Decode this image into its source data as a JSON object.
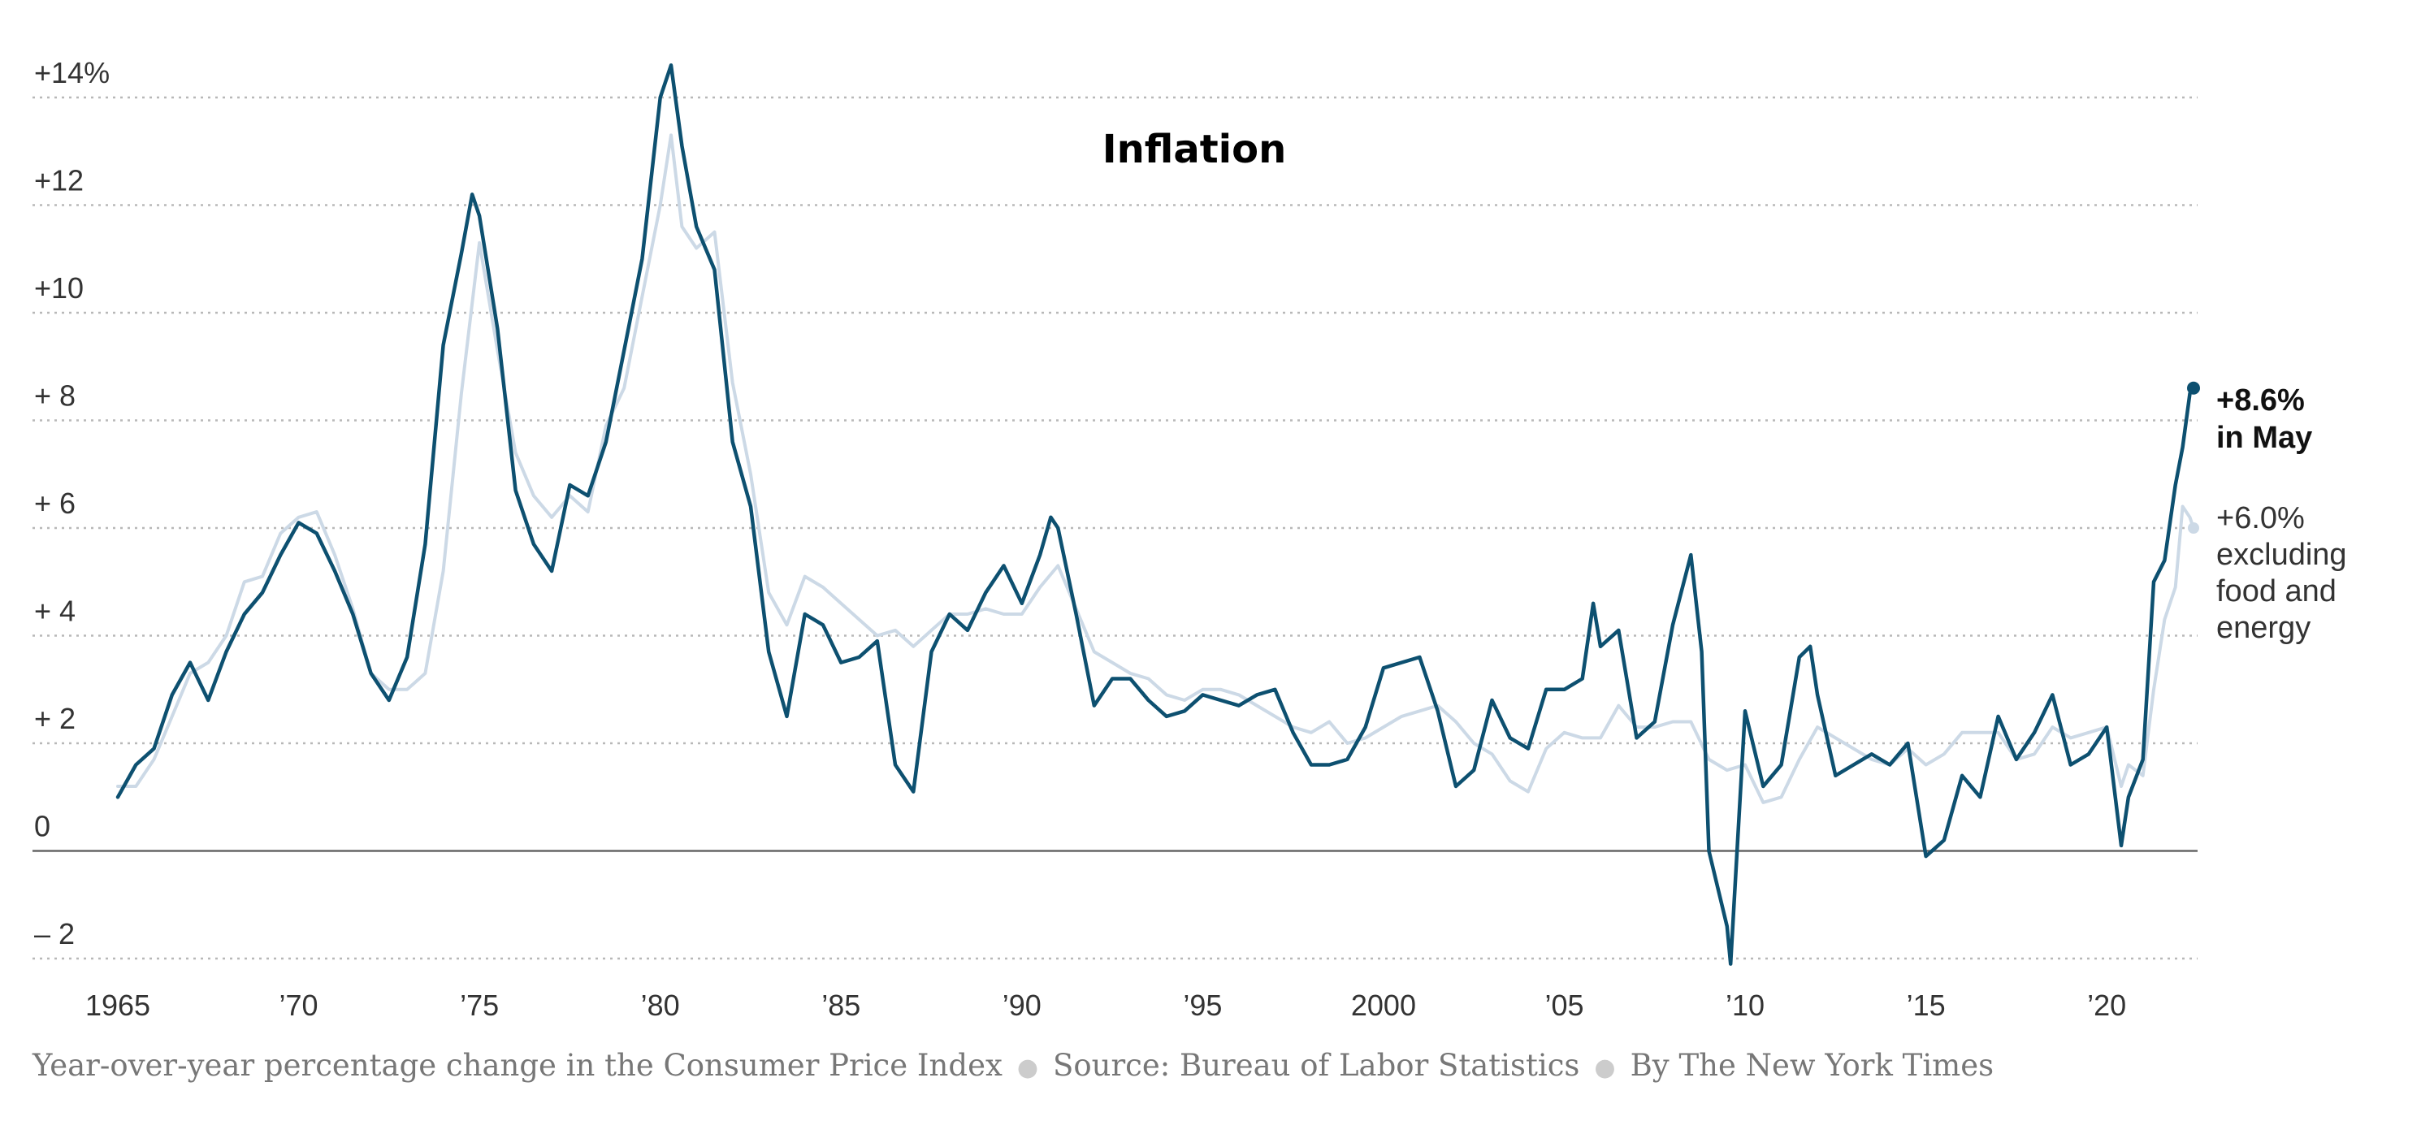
{
  "chart_data": {
    "type": "line",
    "title": "Inflation",
    "x_ticks": [
      "1965",
      "’70",
      "’75",
      "’80",
      "’85",
      "’90",
      "’95",
      "2000",
      "’05",
      "’10",
      "’15",
      "’20"
    ],
    "y_ticks": [
      "+14%",
      "+12",
      "+10",
      "+ 8",
      "+ 6",
      "+ 4",
      "+ 2",
      "0",
      "– 2"
    ],
    "xlim": [
      1965,
      2022.4
    ],
    "ylim": [
      -2,
      14
    ],
    "grid": true,
    "series": [
      {
        "name": "+8.6% in May",
        "label_lines": [
          "+8.6%",
          "in May"
        ],
        "color": "#0d5070",
        "points": [
          [
            1965.0,
            1.0
          ],
          [
            1965.5,
            1.6
          ],
          [
            1966.0,
            1.9
          ],
          [
            1966.5,
            2.9
          ],
          [
            1967.0,
            3.5
          ],
          [
            1967.5,
            2.8
          ],
          [
            1968.0,
            3.7
          ],
          [
            1968.5,
            4.4
          ],
          [
            1969.0,
            4.8
          ],
          [
            1969.5,
            5.5
          ],
          [
            1970.0,
            6.1
          ],
          [
            1970.5,
            5.9
          ],
          [
            1971.0,
            5.2
          ],
          [
            1971.5,
            4.4
          ],
          [
            1972.0,
            3.3
          ],
          [
            1972.5,
            2.8
          ],
          [
            1973.0,
            3.6
          ],
          [
            1973.5,
            5.7
          ],
          [
            1974.0,
            9.4
          ],
          [
            1974.5,
            11.1
          ],
          [
            1974.8,
            12.2
          ],
          [
            1975.0,
            11.8
          ],
          [
            1975.5,
            9.7
          ],
          [
            1976.0,
            6.7
          ],
          [
            1976.5,
            5.7
          ],
          [
            1977.0,
            5.2
          ],
          [
            1977.5,
            6.8
          ],
          [
            1978.0,
            6.6
          ],
          [
            1978.5,
            7.6
          ],
          [
            1979.0,
            9.3
          ],
          [
            1979.5,
            11.0
          ],
          [
            1980.0,
            14.0
          ],
          [
            1980.3,
            14.6
          ],
          [
            1980.6,
            13.1
          ],
          [
            1981.0,
            11.6
          ],
          [
            1981.5,
            10.8
          ],
          [
            1982.0,
            7.6
          ],
          [
            1982.5,
            6.4
          ],
          [
            1983.0,
            3.7
          ],
          [
            1983.5,
            2.5
          ],
          [
            1984.0,
            4.4
          ],
          [
            1984.5,
            4.2
          ],
          [
            1985.0,
            3.5
          ],
          [
            1985.5,
            3.6
          ],
          [
            1986.0,
            3.9
          ],
          [
            1986.5,
            1.6
          ],
          [
            1987.0,
            1.1
          ],
          [
            1987.5,
            3.7
          ],
          [
            1988.0,
            4.4
          ],
          [
            1988.5,
            4.1
          ],
          [
            1989.0,
            4.8
          ],
          [
            1989.5,
            5.3
          ],
          [
            1990.0,
            4.6
          ],
          [
            1990.5,
            5.5
          ],
          [
            1990.8,
            6.2
          ],
          [
            1991.0,
            6.0
          ],
          [
            1991.5,
            4.4
          ],
          [
            1992.0,
            2.7
          ],
          [
            1992.5,
            3.2
          ],
          [
            1993.0,
            3.2
          ],
          [
            1993.5,
            2.8
          ],
          [
            1994.0,
            2.5
          ],
          [
            1994.5,
            2.6
          ],
          [
            1995.0,
            2.9
          ],
          [
            1995.5,
            2.8
          ],
          [
            1996.0,
            2.7
          ],
          [
            1996.5,
            2.9
          ],
          [
            1997.0,
            3.0
          ],
          [
            1997.5,
            2.2
          ],
          [
            1998.0,
            1.6
          ],
          [
            1998.5,
            1.6
          ],
          [
            1999.0,
            1.7
          ],
          [
            1999.5,
            2.3
          ],
          [
            2000.0,
            3.4
          ],
          [
            2000.5,
            3.5
          ],
          [
            2001.0,
            3.6
          ],
          [
            2001.5,
            2.6
          ],
          [
            2002.0,
            1.2
          ],
          [
            2002.5,
            1.5
          ],
          [
            2003.0,
            2.8
          ],
          [
            2003.5,
            2.1
          ],
          [
            2004.0,
            1.9
          ],
          [
            2004.5,
            3.0
          ],
          [
            2005.0,
            3.0
          ],
          [
            2005.5,
            3.2
          ],
          [
            2005.8,
            4.6
          ],
          [
            2006.0,
            3.8
          ],
          [
            2006.5,
            4.1
          ],
          [
            2007.0,
            2.1
          ],
          [
            2007.5,
            2.4
          ],
          [
            2008.0,
            4.2
          ],
          [
            2008.5,
            5.5
          ],
          [
            2008.8,
            3.7
          ],
          [
            2009.0,
            0.0
          ],
          [
            2009.5,
            -1.4
          ],
          [
            2009.6,
            -2.1
          ],
          [
            2010.0,
            2.6
          ],
          [
            2010.5,
            1.2
          ],
          [
            2011.0,
            1.6
          ],
          [
            2011.5,
            3.6
          ],
          [
            2011.8,
            3.8
          ],
          [
            2012.0,
            2.9
          ],
          [
            2012.5,
            1.4
          ],
          [
            2013.0,
            1.6
          ],
          [
            2013.5,
            1.8
          ],
          [
            2014.0,
            1.6
          ],
          [
            2014.5,
            2.0
          ],
          [
            2015.0,
            -0.1
          ],
          [
            2015.5,
            0.2
          ],
          [
            2016.0,
            1.4
          ],
          [
            2016.5,
            1.0
          ],
          [
            2017.0,
            2.5
          ],
          [
            2017.5,
            1.7
          ],
          [
            2018.0,
            2.2
          ],
          [
            2018.5,
            2.9
          ],
          [
            2019.0,
            1.6
          ],
          [
            2019.5,
            1.8
          ],
          [
            2020.0,
            2.3
          ],
          [
            2020.4,
            0.1
          ],
          [
            2020.6,
            1.0
          ],
          [
            2021.0,
            1.7
          ],
          [
            2021.3,
            5.0
          ],
          [
            2021.6,
            5.4
          ],
          [
            2021.9,
            6.8
          ],
          [
            2022.1,
            7.5
          ],
          [
            2022.3,
            8.5
          ],
          [
            2022.4,
            8.6
          ]
        ]
      },
      {
        "name": "+6.0% excluding food and energy",
        "label_lines": [
          "+6.0%",
          "excluding",
          "food and",
          "energy"
        ],
        "color": "#ccd9e6",
        "points": [
          [
            1965.0,
            1.2
          ],
          [
            1965.5,
            1.2
          ],
          [
            1966.0,
            1.7
          ],
          [
            1966.5,
            2.5
          ],
          [
            1967.0,
            3.3
          ],
          [
            1967.5,
            3.5
          ],
          [
            1968.0,
            4.0
          ],
          [
            1968.5,
            5.0
          ],
          [
            1969.0,
            5.1
          ],
          [
            1969.5,
            5.9
          ],
          [
            1970.0,
            6.2
          ],
          [
            1970.5,
            6.3
          ],
          [
            1971.0,
            5.5
          ],
          [
            1971.5,
            4.5
          ],
          [
            1972.0,
            3.3
          ],
          [
            1972.5,
            3.0
          ],
          [
            1973.0,
            3.0
          ],
          [
            1973.5,
            3.3
          ],
          [
            1974.0,
            5.2
          ],
          [
            1974.5,
            8.5
          ],
          [
            1975.0,
            11.3
          ],
          [
            1975.5,
            9.3
          ],
          [
            1976.0,
            7.4
          ],
          [
            1976.5,
            6.6
          ],
          [
            1977.0,
            6.2
          ],
          [
            1977.5,
            6.6
          ],
          [
            1978.0,
            6.3
          ],
          [
            1978.5,
            7.9
          ],
          [
            1979.0,
            8.6
          ],
          [
            1979.5,
            10.3
          ],
          [
            1980.0,
            12.0
          ],
          [
            1980.3,
            13.3
          ],
          [
            1980.6,
            11.6
          ],
          [
            1981.0,
            11.2
          ],
          [
            1981.5,
            11.5
          ],
          [
            1982.0,
            8.7
          ],
          [
            1982.5,
            7.0
          ],
          [
            1983.0,
            4.8
          ],
          [
            1983.5,
            4.2
          ],
          [
            1984.0,
            5.1
          ],
          [
            1984.5,
            4.9
          ],
          [
            1985.0,
            4.6
          ],
          [
            1985.5,
            4.3
          ],
          [
            1986.0,
            4.0
          ],
          [
            1986.5,
            4.1
          ],
          [
            1987.0,
            3.8
          ],
          [
            1987.5,
            4.1
          ],
          [
            1988.0,
            4.4
          ],
          [
            1988.5,
            4.4
          ],
          [
            1989.0,
            4.5
          ],
          [
            1989.5,
            4.4
          ],
          [
            1990.0,
            4.4
          ],
          [
            1990.5,
            4.9
          ],
          [
            1991.0,
            5.3
          ],
          [
            1991.5,
            4.5
          ],
          [
            1992.0,
            3.7
          ],
          [
            1992.5,
            3.5
          ],
          [
            1993.0,
            3.3
          ],
          [
            1993.5,
            3.2
          ],
          [
            1994.0,
            2.9
          ],
          [
            1994.5,
            2.8
          ],
          [
            1995.0,
            3.0
          ],
          [
            1995.5,
            3.0
          ],
          [
            1996.0,
            2.9
          ],
          [
            1996.5,
            2.7
          ],
          [
            1997.0,
            2.5
          ],
          [
            1997.5,
            2.3
          ],
          [
            1998.0,
            2.2
          ],
          [
            1998.5,
            2.4
          ],
          [
            1999.0,
            2.0
          ],
          [
            1999.5,
            2.1
          ],
          [
            2000.0,
            2.3
          ],
          [
            2000.5,
            2.5
          ],
          [
            2001.0,
            2.6
          ],
          [
            2001.5,
            2.7
          ],
          [
            2002.0,
            2.4
          ],
          [
            2002.5,
            2.0
          ],
          [
            2003.0,
            1.8
          ],
          [
            2003.5,
            1.3
          ],
          [
            2004.0,
            1.1
          ],
          [
            2004.5,
            1.9
          ],
          [
            2005.0,
            2.2
          ],
          [
            2005.5,
            2.1
          ],
          [
            2006.0,
            2.1
          ],
          [
            2006.5,
            2.7
          ],
          [
            2007.0,
            2.3
          ],
          [
            2007.5,
            2.3
          ],
          [
            2008.0,
            2.4
          ],
          [
            2008.5,
            2.4
          ],
          [
            2009.0,
            1.7
          ],
          [
            2009.5,
            1.5
          ],
          [
            2010.0,
            1.6
          ],
          [
            2010.5,
            0.9
          ],
          [
            2011.0,
            1.0
          ],
          [
            2011.5,
            1.7
          ],
          [
            2012.0,
            2.3
          ],
          [
            2012.5,
            2.1
          ],
          [
            2013.0,
            1.9
          ],
          [
            2013.5,
            1.7
          ],
          [
            2014.0,
            1.6
          ],
          [
            2014.5,
            1.9
          ],
          [
            2015.0,
            1.6
          ],
          [
            2015.5,
            1.8
          ],
          [
            2016.0,
            2.2
          ],
          [
            2016.5,
            2.2
          ],
          [
            2017.0,
            2.2
          ],
          [
            2017.5,
            1.7
          ],
          [
            2018.0,
            1.8
          ],
          [
            2018.5,
            2.3
          ],
          [
            2019.0,
            2.1
          ],
          [
            2019.5,
            2.2
          ],
          [
            2020.0,
            2.3
          ],
          [
            2020.4,
            1.2
          ],
          [
            2020.6,
            1.6
          ],
          [
            2021.0,
            1.4
          ],
          [
            2021.3,
            3.0
          ],
          [
            2021.6,
            4.3
          ],
          [
            2021.9,
            4.9
          ],
          [
            2022.1,
            6.4
          ],
          [
            2022.3,
            6.2
          ],
          [
            2022.4,
            6.0
          ]
        ]
      }
    ]
  },
  "footer": {
    "description": "Year-over-year percentage change in the Consumer Price Index",
    "source": "Source: Bureau of Labor Statistics",
    "byline": "By The New York Times"
  }
}
